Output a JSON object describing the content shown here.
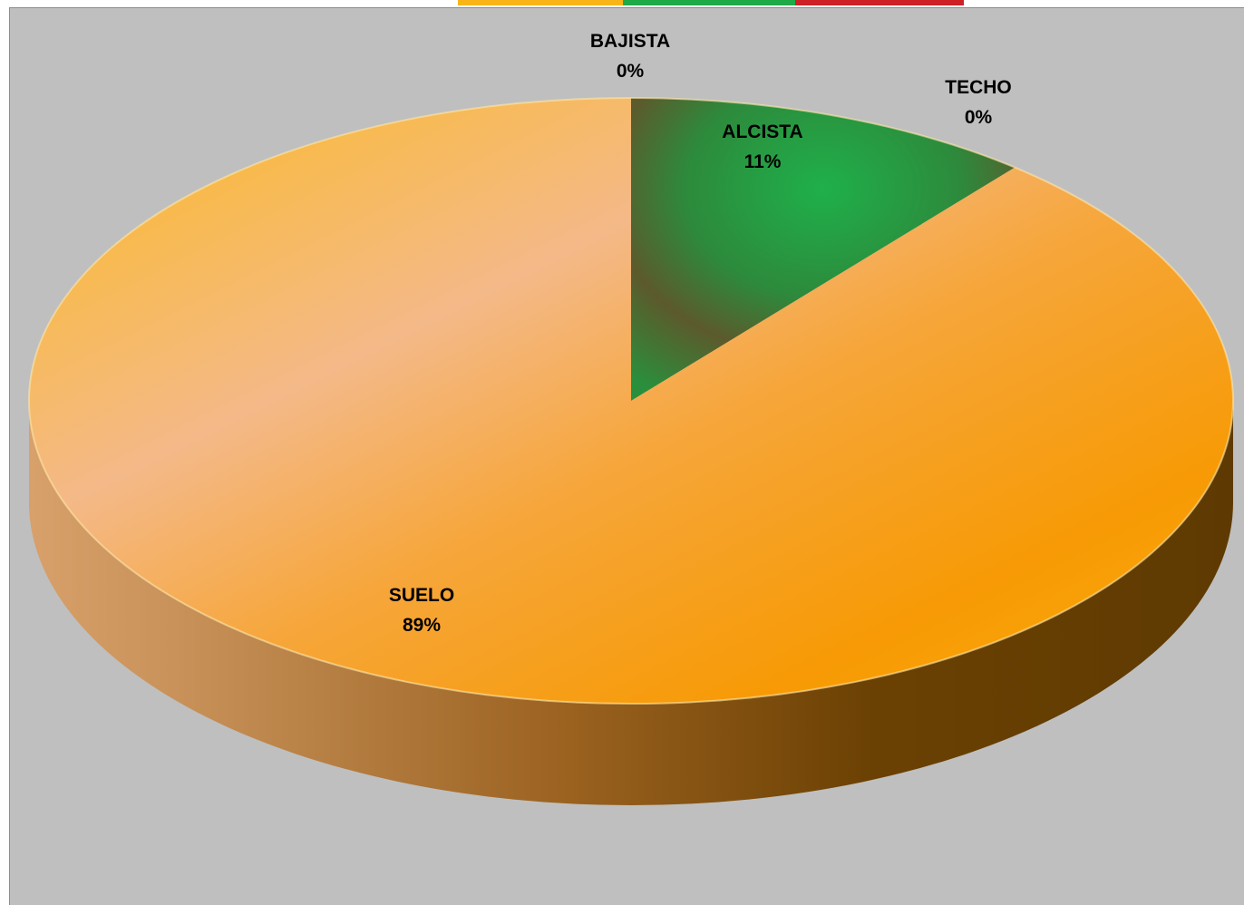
{
  "colors": {
    "background": "#bfbfbf",
    "suelo": "#f7a21b",
    "alcista": "#1f9a3c",
    "bajista": "#cc2229",
    "techo": "#f7a21b",
    "strip": [
      "#f9b518",
      "#1faa47",
      "#cc1f26"
    ]
  },
  "chart_data": {
    "type": "pie",
    "style": "3d",
    "start_angle_deg": 0,
    "slices": [
      {
        "name": "BAJISTA",
        "value": 0,
        "label": "0%",
        "color": "#cc2229"
      },
      {
        "name": "ALCISTA",
        "value": 11,
        "label": "11%",
        "color": "#1f9a3c"
      },
      {
        "name": "TECHO",
        "value": 0,
        "label": "0%",
        "color": "#f7a21b"
      },
      {
        "name": "SUELO",
        "value": 89,
        "label": "89%",
        "color": "#f7a21b"
      }
    ],
    "legend": "none"
  }
}
